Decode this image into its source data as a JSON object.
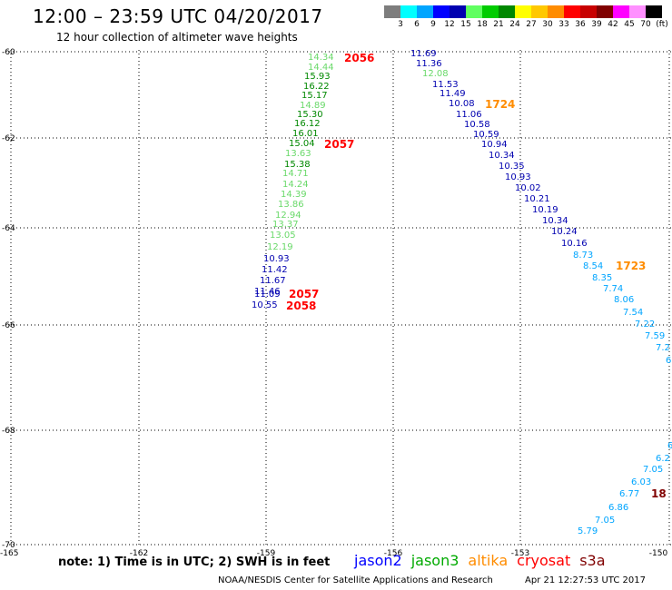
{
  "header": {
    "title": "12:00 – 23:59 UTC 04/20/2017",
    "subtitle": "12 hour collection of altimeter wave heights"
  },
  "legend": {
    "colors": [
      "#7d7d7d",
      "#00ffff",
      "#00a5ff",
      "#0000ff",
      "#0000b0",
      "#60ff60",
      "#00cc00",
      "#008800",
      "#ffff00",
      "#ffc800",
      "#ff8c00",
      "#ff0000",
      "#c80000",
      "#800000",
      "#ff00ff",
      "#ff90ff",
      "#000000"
    ],
    "labels": [
      "3",
      "6",
      "9",
      "12",
      "15",
      "18",
      "21",
      "24",
      "27",
      "30",
      "33",
      "36",
      "39",
      "42",
      "45",
      "70",
      "(ft)"
    ]
  },
  "axes": {
    "y_labels": [
      "-60",
      "-62",
      "-64",
      "-66",
      "-68",
      "-70"
    ],
    "x_labels": [
      "-165",
      "-162",
      "-159",
      "-156",
      "-153",
      "-150"
    ]
  },
  "satellite_colors": {
    "jason2": "#0000b0",
    "jason3_light": "#6ad96a",
    "jason3_dark": "#008800",
    "altika": "#ff8c00",
    "cryosat": "#ff0000",
    "cyan": "#00a5ff",
    "dark_red": "#800000"
  },
  "observations": [
    {
      "v": "14.34",
      "c": "jason3_light"
    },
    {
      "v": "14.44",
      "c": "jason3_light"
    },
    {
      "v": "15.93",
      "c": "jason3_dark"
    },
    {
      "v": "16.22",
      "c": "jason3_dark"
    },
    {
      "v": "15.17",
      "c": "jason3_dark"
    },
    {
      "v": "14.89",
      "c": "jason3_light"
    },
    {
      "v": "15.30",
      "c": "jason3_dark"
    },
    {
      "v": "16.12",
      "c": "jason3_dark"
    },
    {
      "v": "16.01",
      "c": "jason3_dark"
    },
    {
      "v": "15.04",
      "c": "jason3_dark"
    },
    {
      "v": "13.63",
      "c": "jason3_light"
    },
    {
      "v": "15.38",
      "c": "jason3_dark"
    },
    {
      "v": "14.71",
      "c": "jason3_light"
    },
    {
      "v": "14.24",
      "c": "jason3_light"
    },
    {
      "v": "14.39",
      "c": "jason3_light"
    },
    {
      "v": "13.86",
      "c": "jason3_light"
    },
    {
      "v": "12.94",
      "c": "jason3_light"
    },
    {
      "v": "13.37",
      "c": "jason3_light"
    },
    {
      "v": "13.05",
      "c": "jason3_light"
    },
    {
      "v": "12.19",
      "c": "jason3_light"
    },
    {
      "v": "10.93",
      "c": "jason2"
    },
    {
      "v": "11.42",
      "c": "jason2"
    },
    {
      "v": "11.67",
      "c": "jason2"
    },
    {
      "v": "11.46",
      "c": "jason2"
    },
    {
      "v": "11.09",
      "c": "jason2"
    },
    {
      "v": "10.55",
      "c": "jason2"
    },
    {
      "v": "11.69",
      "c": "jason2"
    },
    {
      "v": "11.36",
      "c": "jason2"
    },
    {
      "v": "12.08",
      "c": "jason3_light"
    },
    {
      "v": "11.53",
      "c": "jason2"
    },
    {
      "v": "11.49",
      "c": "jason2"
    },
    {
      "v": "10.08",
      "c": "jason2"
    },
    {
      "v": "11.06",
      "c": "jason2"
    },
    {
      "v": "10.58",
      "c": "jason2"
    },
    {
      "v": "10.59",
      "c": "jason2"
    },
    {
      "v": "10.94",
      "c": "jason2"
    },
    {
      "v": "10.34",
      "c": "jason2"
    },
    {
      "v": "10.35",
      "c": "jason2"
    },
    {
      "v": "10.93",
      "c": "jason2"
    },
    {
      "v": "10.02",
      "c": "jason2"
    },
    {
      "v": "10.21",
      "c": "jason2"
    },
    {
      "v": "10.19",
      "c": "jason2"
    },
    {
      "v": "10.34",
      "c": "jason2"
    },
    {
      "v": "10.24",
      "c": "jason2"
    },
    {
      "v": "10.16",
      "c": "jason2"
    },
    {
      "v": "8.73",
      "c": "cyan"
    },
    {
      "v": "8.54",
      "c": "cyan"
    },
    {
      "v": "8.35",
      "c": "cyan"
    },
    {
      "v": "7.74",
      "c": "cyan"
    },
    {
      "v": "8.06",
      "c": "cyan"
    },
    {
      "v": "7.54",
      "c": "cyan"
    },
    {
      "v": "7.22",
      "c": "cyan"
    },
    {
      "v": "7.59",
      "c": "cyan"
    },
    {
      "v": "7.2",
      "c": "cyan"
    },
    {
      "v": "6",
      "c": "cyan"
    },
    {
      "v": "6",
      "c": "cyan"
    },
    {
      "v": "6.2",
      "c": "cyan"
    },
    {
      "v": "7.05",
      "c": "cyan"
    },
    {
      "v": "6.03",
      "c": "cyan"
    },
    {
      "v": "6.77",
      "c": "cyan"
    },
    {
      "v": "6.86",
      "c": "cyan"
    },
    {
      "v": "7.05",
      "c": "cyan"
    },
    {
      "v": "5.79",
      "c": "cyan"
    }
  ],
  "time_tags": [
    {
      "v": "2056",
      "c": "cryosat"
    },
    {
      "v": "2057",
      "c": "cryosat"
    },
    {
      "v": "2057",
      "c": "cryosat"
    },
    {
      "v": "2058",
      "c": "cryosat"
    },
    {
      "v": "1724",
      "c": "altika"
    },
    {
      "v": "1723",
      "c": "altika"
    },
    {
      "v": "18",
      "c": "dark_red"
    }
  ],
  "footer": {
    "note": "note: 1) Time is in UTC; 2) SWH is in feet",
    "satellites": [
      {
        "name": "jason2",
        "color": "#0000ff"
      },
      {
        "name": "jason3",
        "color": "#00aa00"
      },
      {
        "name": "altika",
        "color": "#ff8c00"
      },
      {
        "name": "cryosat",
        "color": "#ff0000"
      },
      {
        "name": "s3a",
        "color": "#800000"
      }
    ],
    "credit": "NOAA/NESDIS Center for Satellite Applications and Research",
    "timestamp": "Apr 21 12:27:53 UTC 2017"
  }
}
